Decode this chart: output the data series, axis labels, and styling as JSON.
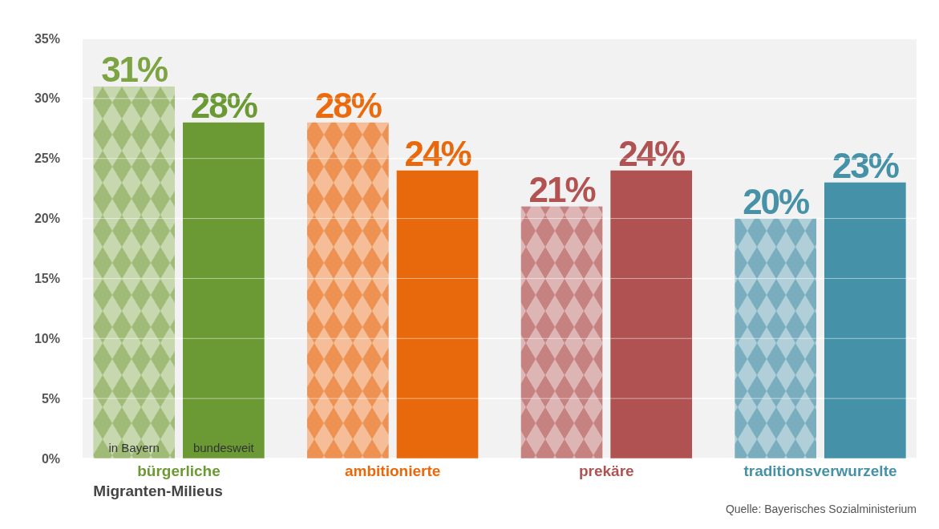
{
  "chart_data": {
    "type": "bar",
    "xlabel": "Migranten-Milieus",
    "categories": [
      "bürgerliche",
      "ambitionierte",
      "prekäre",
      "traditionsverwurzelte"
    ],
    "series": [
      {
        "name": "in Bayern",
        "colors": [
          "#7da443",
          "#ec6a0e",
          "#b25352",
          "#4892a8"
        ],
        "values": [
          31,
          28,
          21,
          20
        ],
        "value_labels": [
          "31%",
          "28%",
          "21%",
          "20%"
        ]
      },
      {
        "name": "bundesweit",
        "colors": [
          "#6b9a34",
          "#e8690b",
          "#b05252",
          "#4591a7"
        ],
        "values": [
          28,
          24,
          24,
          23
        ],
        "value_labels": [
          "28%",
          "24%",
          "24%",
          "23%"
        ]
      }
    ],
    "ylim": [
      0,
      35
    ],
    "yticks": [
      {
        "value": 0,
        "label": "0%"
      },
      {
        "value": 5,
        "label": "5%"
      },
      {
        "value": 10,
        "label": "10%"
      },
      {
        "value": 15,
        "label": "15%"
      },
      {
        "value": 20,
        "label": "20%"
      },
      {
        "value": 25,
        "label": "25%"
      },
      {
        "value": 30,
        "label": "30%"
      },
      {
        "value": 35,
        "label": "35%"
      }
    ],
    "grid": "y",
    "annotations": [
      "Quelle: Bayerisches Sozialministerium"
    ]
  }
}
